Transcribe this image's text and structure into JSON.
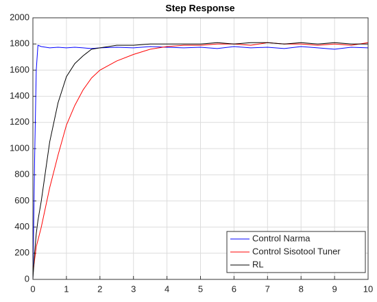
{
  "chart_data": {
    "type": "line",
    "title": "Step Response",
    "x": [
      0,
      0.05,
      0.1,
      0.15,
      0.25,
      0.5,
      0.75,
      1,
      1.25,
      1.5,
      1.75,
      2,
      2.5,
      3,
      3.5,
      4,
      4.5,
      5,
      5.5,
      6,
      6.5,
      7,
      7.5,
      8,
      8.5,
      9,
      9.5,
      10
    ],
    "series": [
      {
        "name": "Control Narma",
        "color": "#0000ff",
        "values": [
          0,
          900,
          1600,
          1790,
          1780,
          1770,
          1775,
          1770,
          1775,
          1770,
          1765,
          1770,
          1775,
          1770,
          1780,
          1775,
          1770,
          1775,
          1765,
          1780,
          1770,
          1775,
          1765,
          1780,
          1770,
          1760,
          1775,
          1770
        ]
      },
      {
        "name": "Control Sisotool Tuner",
        "color": "#ff0000",
        "values": [
          50,
          150,
          250,
          300,
          400,
          700,
          950,
          1180,
          1330,
          1450,
          1540,
          1600,
          1670,
          1720,
          1760,
          1780,
          1790,
          1790,
          1800,
          1800,
          1790,
          1810,
          1800,
          1800,
          1790,
          1800,
          1790,
          1810
        ]
      },
      {
        "name": "RL",
        "color": "#000000",
        "values": [
          0,
          200,
          350,
          450,
          600,
          1050,
          1350,
          1550,
          1650,
          1710,
          1760,
          1770,
          1790,
          1790,
          1800,
          1800,
          1800,
          1800,
          1810,
          1800,
          1810,
          1810,
          1800,
          1810,
          1800,
          1810,
          1800,
          1800
        ]
      }
    ],
    "xlim": [
      0,
      10
    ],
    "xticks": [
      0,
      1,
      2,
      3,
      4,
      5,
      6,
      7,
      8,
      9,
      10
    ],
    "ylim": [
      0,
      2000
    ],
    "yticks": [
      0,
      200,
      400,
      600,
      800,
      1000,
      1200,
      1400,
      1600,
      1800,
      2000
    ],
    "grid": true,
    "legend": "lower right"
  }
}
